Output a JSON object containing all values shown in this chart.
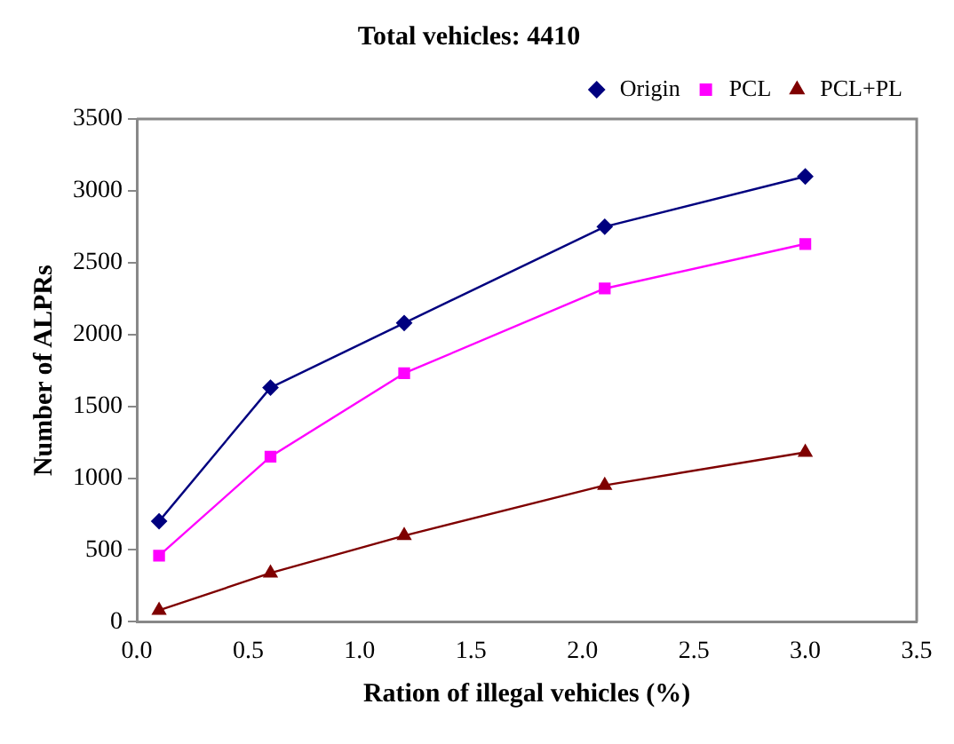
{
  "chart_data": {
    "type": "line",
    "title": "Total vehicles: 4410",
    "xlabel": "Ration of illegal vehicles (%)",
    "ylabel": "Number of ALPRs",
    "xlim": [
      0,
      3.5
    ],
    "xticks": [
      {
        "value": 0,
        "label": "0.0"
      },
      {
        "value": 0.5,
        "label": "0.5"
      },
      {
        "value": 1,
        "label": "1.0"
      },
      {
        "value": 1.5,
        "label": "1.5"
      },
      {
        "value": 2,
        "label": "2.0"
      },
      {
        "value": 2.5,
        "label": "2.5"
      },
      {
        "value": 3,
        "label": "3.0"
      },
      {
        "value": 3.5,
        "label": "3.5"
      }
    ],
    "ylim": [
      0,
      3500
    ],
    "yticks": [
      0,
      500,
      1000,
      1500,
      2000,
      2500,
      3000,
      3500
    ],
    "grid": false,
    "legend": "top right",
    "line_style": "solid",
    "x": [
      0.1,
      0.6,
      1.2,
      2.1,
      3.0
    ],
    "series": [
      {
        "name": "Origin",
        "color": "#00007f",
        "marker": "diamond",
        "values": [
          700,
          1630,
          2080,
          2750,
          3100
        ]
      },
      {
        "name": "PCL",
        "color": "#ff00ff",
        "marker": "square",
        "values": [
          460,
          1150,
          1730,
          2320,
          2630
        ]
      },
      {
        "name": "PCL+PL",
        "color": "#7f0000",
        "marker": "triangle",
        "values": [
          80,
          340,
          600,
          950,
          1180
        ]
      }
    ]
  }
}
